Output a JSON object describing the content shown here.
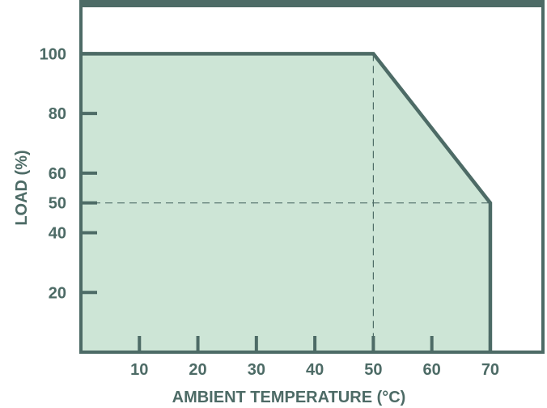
{
  "chart_data": {
    "type": "area",
    "title": "",
    "xlabel": "AMBIENT TEMPERATURE (°C)",
    "ylabel": "LOAD (%)",
    "x": [
      0,
      50,
      70
    ],
    "values": [
      100,
      100,
      50
    ],
    "xlim": [
      0,
      79
    ],
    "ylim": [
      0,
      118
    ],
    "xticks": [
      10,
      20,
      30,
      40,
      50,
      60,
      70
    ],
    "yticks": [
      20,
      40,
      50,
      60,
      80,
      100
    ],
    "xtick_labels": [
      "10",
      "20",
      "30",
      "40",
      "50",
      "60",
      "70"
    ],
    "ytick_labels": [
      "20",
      "40",
      "50",
      "60",
      "80",
      "100"
    ],
    "guide_lines": [
      {
        "orientation": "vertical",
        "value": 50
      },
      {
        "orientation": "horizontal",
        "value": 50
      }
    ],
    "grid": false,
    "legend": "none",
    "colors": {
      "fill": "#cde5d6",
      "line": "#4d6b66",
      "axis": "#4d6b66",
      "text": "#4d6b66"
    }
  }
}
